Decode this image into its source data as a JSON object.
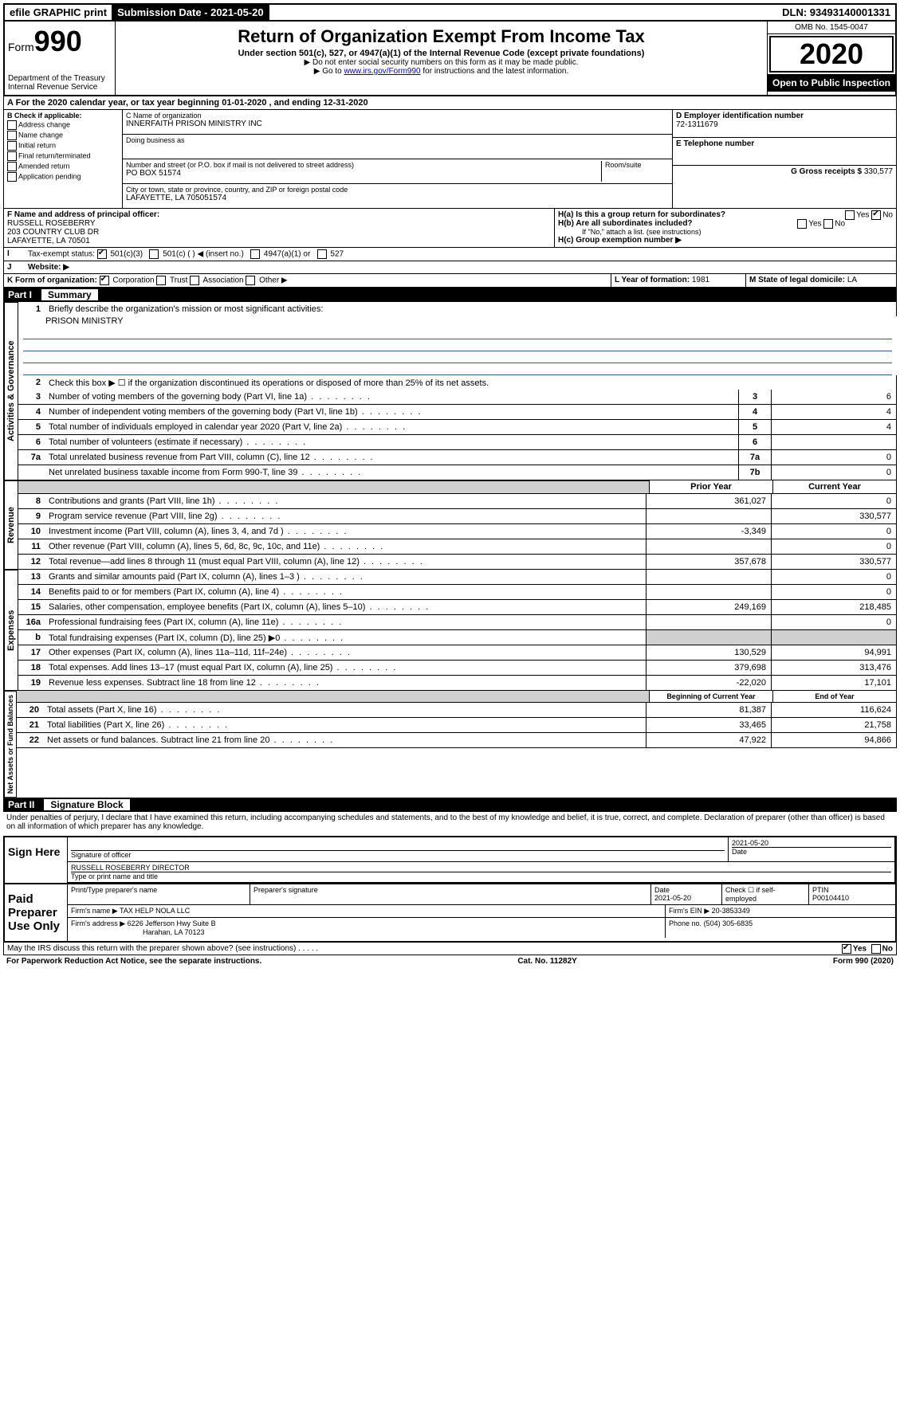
{
  "topbar": {
    "efile": "efile GRAPHIC print",
    "submission_label": "Submission Date - 2021-05-20",
    "dln": "DLN: 93493140001331"
  },
  "header": {
    "form_word": "Form",
    "form_number": "990",
    "dept1": "Department of the Treasury",
    "dept2": "Internal Revenue Service",
    "title": "Return of Organization Exempt From Income Tax",
    "subtitle": "Under section 501(c), 527, or 4947(a)(1) of the Internal Revenue Code (except private foundations)",
    "note1": "▶ Do not enter social security numbers on this form as it may be made public.",
    "note2_pre": "▶ Go to ",
    "note2_link": "www.irs.gov/Form990",
    "note2_post": " for instructions and the latest information.",
    "omb": "OMB No. 1545-0047",
    "year": "2020",
    "open": "Open to Public Inspection"
  },
  "period": {
    "line": "For the 2020 calendar year, or tax year beginning 01-01-2020    , and ending 12-31-2020"
  },
  "boxB": {
    "heading": "B Check if applicable:",
    "items": [
      "Address change",
      "Name change",
      "Initial return",
      "Final return/terminated",
      "Amended return",
      "Application pending"
    ]
  },
  "boxC": {
    "name_label": "C Name of organization",
    "name": "INNERFAITH PRISON MINISTRY INC",
    "dba_label": "Doing business as",
    "addr_label": "Number and street (or P.O. box if mail is not delivered to street address)",
    "room_label": "Room/suite",
    "addr": "PO BOX 51574",
    "city_label": "City or town, state or province, country, and ZIP or foreign postal code",
    "city": "LAFAYETTE, LA  705051574"
  },
  "boxD": {
    "label": "D Employer identification number",
    "value": "72-1311679"
  },
  "boxE": {
    "label": "E Telephone number",
    "value": ""
  },
  "boxG": {
    "label": "G Gross receipts $",
    "value": "330,577"
  },
  "boxF": {
    "label": "F  Name and address of principal officer:",
    "name": "RUSSELL ROSEBERRY",
    "addr1": "203 COUNTRY CLUB DR",
    "addr2": "LAFAYETTE, LA  70501"
  },
  "boxH": {
    "a": "H(a)  Is this a group return for subordinates?",
    "b": "H(b)  Are all subordinates included?",
    "b_note": "If \"No,\" attach a list. (see instructions)",
    "c": "H(c)  Group exemption number ▶",
    "yes": "Yes",
    "no": "No"
  },
  "taxExempt": {
    "label": "Tax-exempt status:",
    "opts": [
      "501(c)(3)",
      "501(c) (   ) ◀ (insert no.)",
      "4947(a)(1) or",
      "527"
    ]
  },
  "website": {
    "label": "Website: ▶"
  },
  "lineK": {
    "label": "K Form of organization:",
    "opts": [
      "Corporation",
      "Trust",
      "Association",
      "Other ▶"
    ]
  },
  "lineL": {
    "label": "L Year of formation:",
    "value": "1981"
  },
  "lineM": {
    "label": "M State of legal domicile:",
    "value": "LA"
  },
  "partI": {
    "label": "Part I",
    "title": "Summary"
  },
  "summary": {
    "side_gov": "Activities & Governance",
    "side_rev": "Revenue",
    "side_exp": "Expenses",
    "side_net": "Net Assets or Fund Balances",
    "line1_label": "Briefly describe the organization's mission or most significant activities:",
    "line1_value": "PRISON MINISTRY",
    "line2": "Check this box ▶ ☐  if the organization discontinued its operations or disposed of more than 25% of its net assets.",
    "rows_single": [
      {
        "n": "3",
        "d": "Number of voting members of the governing body (Part VI, line 1a)",
        "box": "3",
        "v": "6"
      },
      {
        "n": "4",
        "d": "Number of independent voting members of the governing body (Part VI, line 1b)",
        "box": "4",
        "v": "4"
      },
      {
        "n": "5",
        "d": "Total number of individuals employed in calendar year 2020 (Part V, line 2a)",
        "box": "5",
        "v": "4"
      },
      {
        "n": "6",
        "d": "Total number of volunteers (estimate if necessary)",
        "box": "6",
        "v": ""
      },
      {
        "n": "7a",
        "d": "Total unrelated business revenue from Part VIII, column (C), line 12",
        "box": "7a",
        "v": "0"
      },
      {
        "n": "",
        "d": "Net unrelated business taxable income from Form 990-T, line 39",
        "box": "7b",
        "v": "0"
      }
    ],
    "col_heads": {
      "prior": "Prior Year",
      "current": "Current Year"
    },
    "rows_rev": [
      {
        "n": "8",
        "d": "Contributions and grants (Part VIII, line 1h)",
        "p": "361,027",
        "c": "0"
      },
      {
        "n": "9",
        "d": "Program service revenue (Part VIII, line 2g)",
        "p": "",
        "c": "330,577"
      },
      {
        "n": "10",
        "d": "Investment income (Part VIII, column (A), lines 3, 4, and 7d )",
        "p": "-3,349",
        "c": "0"
      },
      {
        "n": "11",
        "d": "Other revenue (Part VIII, column (A), lines 5, 6d, 8c, 9c, 10c, and 11e)",
        "p": "",
        "c": "0"
      },
      {
        "n": "12",
        "d": "Total revenue—add lines 8 through 11 (must equal Part VIII, column (A), line 12)",
        "p": "357,678",
        "c": "330,577"
      }
    ],
    "rows_exp": [
      {
        "n": "13",
        "d": "Grants and similar amounts paid (Part IX, column (A), lines 1–3 )",
        "p": "",
        "c": "0"
      },
      {
        "n": "14",
        "d": "Benefits paid to or for members (Part IX, column (A), line 4)",
        "p": "",
        "c": "0"
      },
      {
        "n": "15",
        "d": "Salaries, other compensation, employee benefits (Part IX, column (A), lines 5–10)",
        "p": "249,169",
        "c": "218,485"
      },
      {
        "n": "16a",
        "d": "Professional fundraising fees (Part IX, column (A), line 11e)",
        "p": "",
        "c": "0"
      },
      {
        "n": "b",
        "d": "Total fundraising expenses (Part IX, column (D), line 25) ▶0",
        "p": "GRAY",
        "c": "GRAY"
      },
      {
        "n": "17",
        "d": "Other expenses (Part IX, column (A), lines 11a–11d, 11f–24e)",
        "p": "130,529",
        "c": "94,991"
      },
      {
        "n": "18",
        "d": "Total expenses. Add lines 13–17 (must equal Part IX, column (A), line 25)",
        "p": "379,698",
        "c": "313,476"
      },
      {
        "n": "19",
        "d": "Revenue less expenses. Subtract line 18 from line 12",
        "p": "-22,020",
        "c": "17,101"
      }
    ],
    "col_heads2": {
      "prior": "Beginning of Current Year",
      "current": "End of Year"
    },
    "rows_net": [
      {
        "n": "20",
        "d": "Total assets (Part X, line 16)",
        "p": "81,387",
        "c": "116,624"
      },
      {
        "n": "21",
        "d": "Total liabilities (Part X, line 26)",
        "p": "33,465",
        "c": "21,758"
      },
      {
        "n": "22",
        "d": "Net assets or fund balances. Subtract line 21 from line 20",
        "p": "47,922",
        "c": "94,866"
      }
    ]
  },
  "partII": {
    "label": "Part II",
    "title": "Signature Block"
  },
  "perjury": "Under penalties of perjury, I declare that I have examined this return, including accompanying schedules and statements, and to the best of my knowledge and belief, it is true, correct, and complete. Declaration of preparer (other than officer) is based on all information of which preparer has any knowledge.",
  "sign": {
    "here": "Sign Here",
    "sig_officer": "Signature of officer",
    "date": "2021-05-20",
    "date_label": "Date",
    "name": "RUSSELL ROSEBERRY DIRECTOR",
    "name_label": "Type or print name and title"
  },
  "paid": {
    "label": "Paid Preparer Use Only",
    "h1": "Print/Type preparer's name",
    "h2": "Preparer's signature",
    "h3": "Date",
    "h3v": "2021-05-20",
    "h4": "Check ☐ if self-employed",
    "h5": "PTIN",
    "h5v": "P00104410",
    "firm_name_label": "Firm's name    ▶",
    "firm_name": "TAX HELP NOLA LLC",
    "firm_ein_label": "Firm's EIN ▶",
    "firm_ein": "20-3853349",
    "firm_addr_label": "Firm's address ▶",
    "firm_addr1": "6226 Jefferson Hwy Suite B",
    "firm_addr2": "Harahan, LA  70123",
    "phone_label": "Phone no.",
    "phone": "(504) 305-6835"
  },
  "discuss": {
    "q": "May the IRS discuss this return with the preparer shown above? (see instructions)",
    "yes": "Yes",
    "no": "No"
  },
  "footer": {
    "left": "For Paperwork Reduction Act Notice, see the separate instructions.",
    "mid": "Cat. No. 11282Y",
    "right": "Form 990 (2020)"
  },
  "colors": {
    "link": "#0000cc",
    "rule": "#3355aa"
  }
}
